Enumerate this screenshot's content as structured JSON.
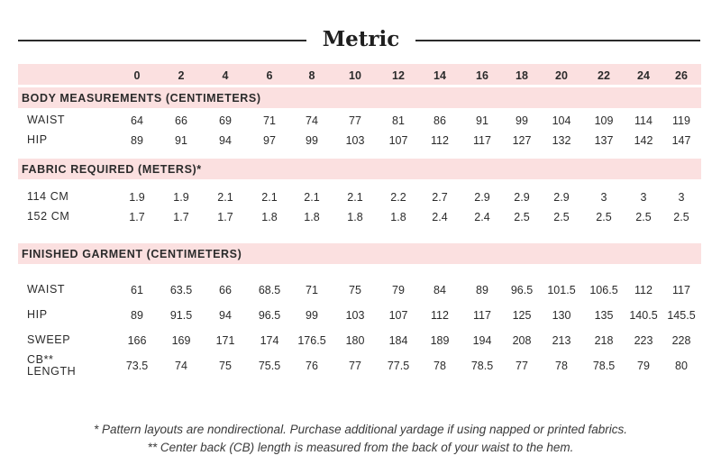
{
  "title": "Metric",
  "sizes": [
    "0",
    "2",
    "4",
    "6",
    "8",
    "10",
    "12",
    "14",
    "16",
    "18",
    "20",
    "22",
    "24",
    "26"
  ],
  "sections": [
    {
      "heading": "BODY MEASUREMENTS (CENTIMETERS)",
      "rows": [
        {
          "label": "WAIST",
          "values": [
            "64",
            "66",
            "69",
            "71",
            "74",
            "77",
            "81",
            "86",
            "91",
            "99",
            "104",
            "109",
            "114",
            "119"
          ]
        },
        {
          "label": "HIP",
          "values": [
            "89",
            "91",
            "94",
            "97",
            "99",
            "103",
            "107",
            "112",
            "117",
            "127",
            "132",
            "137",
            "142",
            "147"
          ]
        }
      ]
    },
    {
      "heading": "FABRIC REQUIRED (METERS)*",
      "rows": [
        {
          "label": "114 CM",
          "values": [
            "1.9",
            "1.9",
            "2.1",
            "2.1",
            "2.1",
            "2.1",
            "2.2",
            "2.7",
            "2.9",
            "2.9",
            "2.9",
            "3",
            "3",
            "3"
          ]
        },
        {
          "label": "152 CM",
          "values": [
            "1.7",
            "1.7",
            "1.7",
            "1.8",
            "1.8",
            "1.8",
            "1.8",
            "2.4",
            "2.4",
            "2.5",
            "2.5",
            "2.5",
            "2.5",
            "2.5"
          ]
        }
      ]
    },
    {
      "heading": "FINISHED GARMENT (CENTIMETERS)",
      "rows": [
        {
          "label": "WAIST",
          "values": [
            "61",
            "63.5",
            "66",
            "68.5",
            "71",
            "75",
            "79",
            "84",
            "89",
            "96.5",
            "101.5",
            "106.5",
            "112",
            "117"
          ]
        },
        {
          "label": "HIP",
          "values": [
            "89",
            "91.5",
            "94",
            "96.5",
            "99",
            "103",
            "107",
            "112",
            "117",
            "125",
            "130",
            "135",
            "140.5",
            "145.5"
          ]
        },
        {
          "label": "SWEEP",
          "values": [
            "166",
            "169",
            "171",
            "174",
            "176.5",
            "180",
            "184",
            "189",
            "194",
            "208",
            "213",
            "218",
            "223",
            "228"
          ]
        },
        {
          "label": "CB**\nLENGTH",
          "values": [
            "73.5",
            "74",
            "75",
            "75.5",
            "76",
            "77",
            "77.5",
            "78",
            "78.5",
            "77",
            "78",
            "78.5",
            "79",
            "80"
          ]
        }
      ]
    }
  ],
  "notes": [
    "* Pattern layouts are nondirectional. Purchase additional yardage if using napped or printed fabrics.",
    "** Center back (CB) length is measured from the back of your waist to the hem."
  ]
}
